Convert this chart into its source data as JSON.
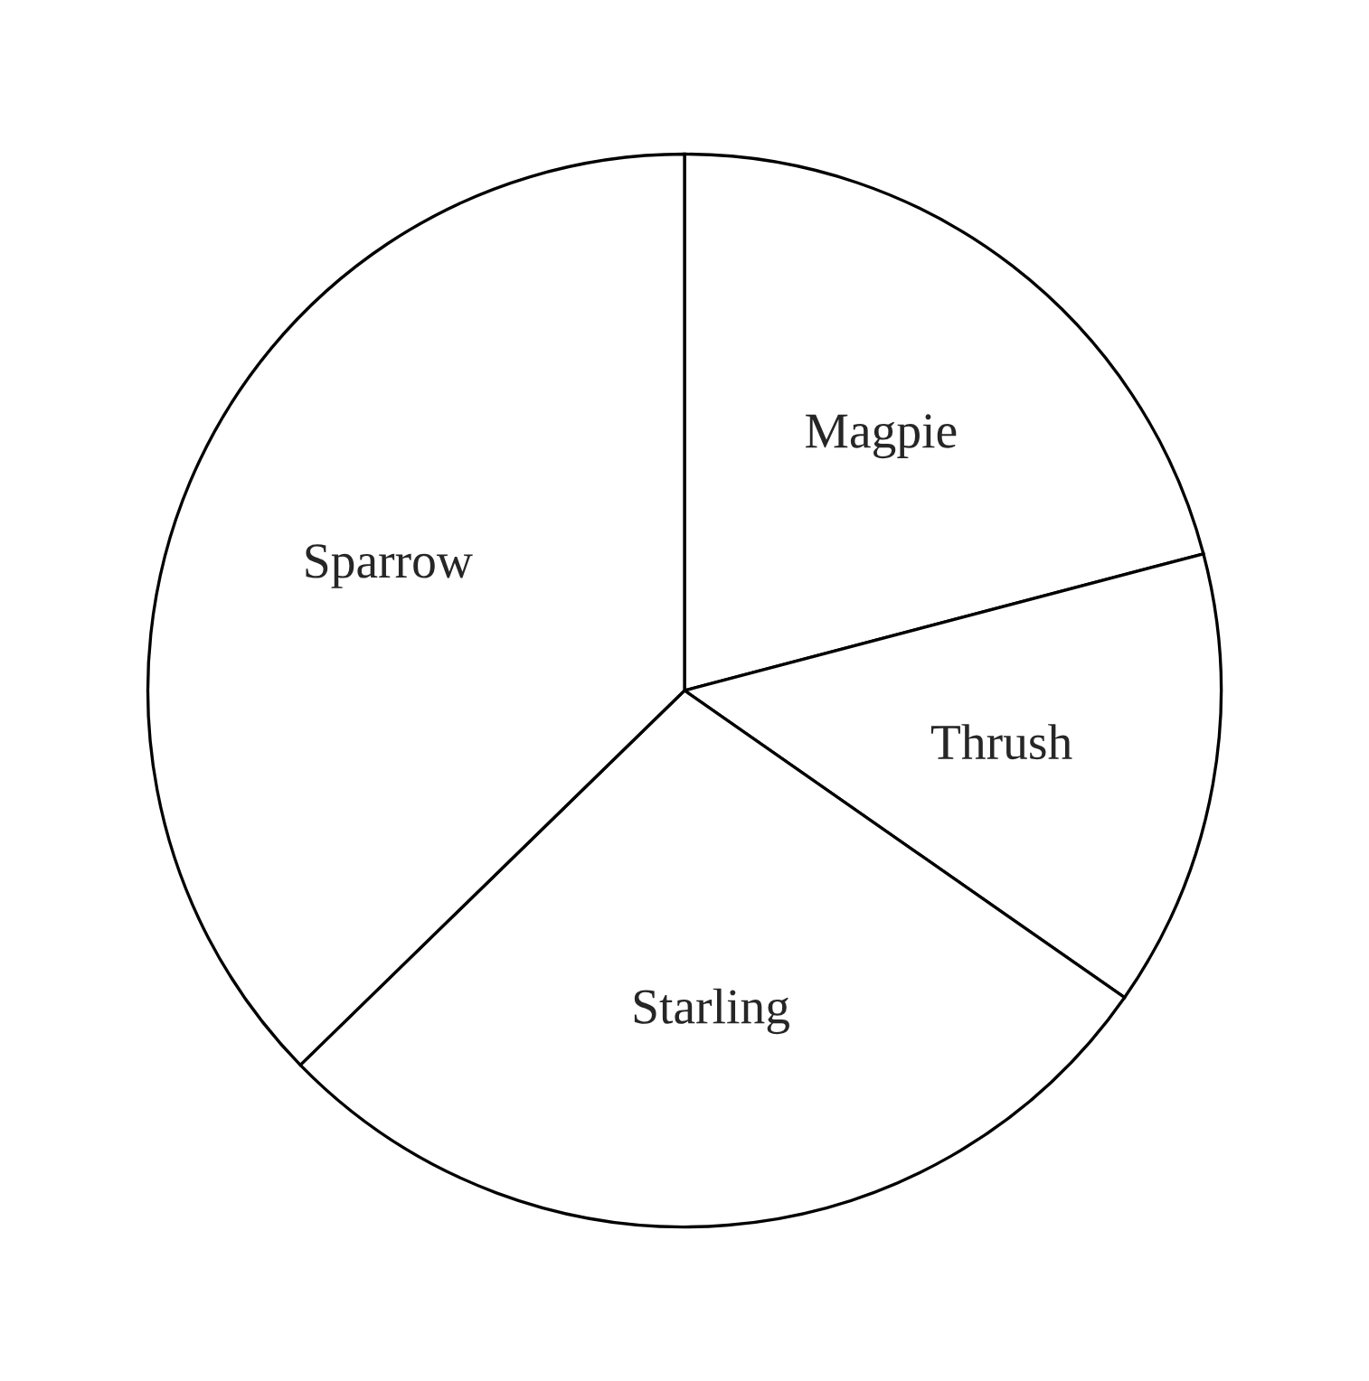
{
  "chart_data": {
    "type": "pie",
    "categories": [
      "Magpie",
      "Thrush",
      "Starling",
      "Sparrow"
    ],
    "values": [
      20.9,
      13.8,
      28.0,
      37.3
    ],
    "colors": [
      "#ffffff",
      "#ffffff",
      "#ffffff",
      "#ffffff"
    ]
  }
}
